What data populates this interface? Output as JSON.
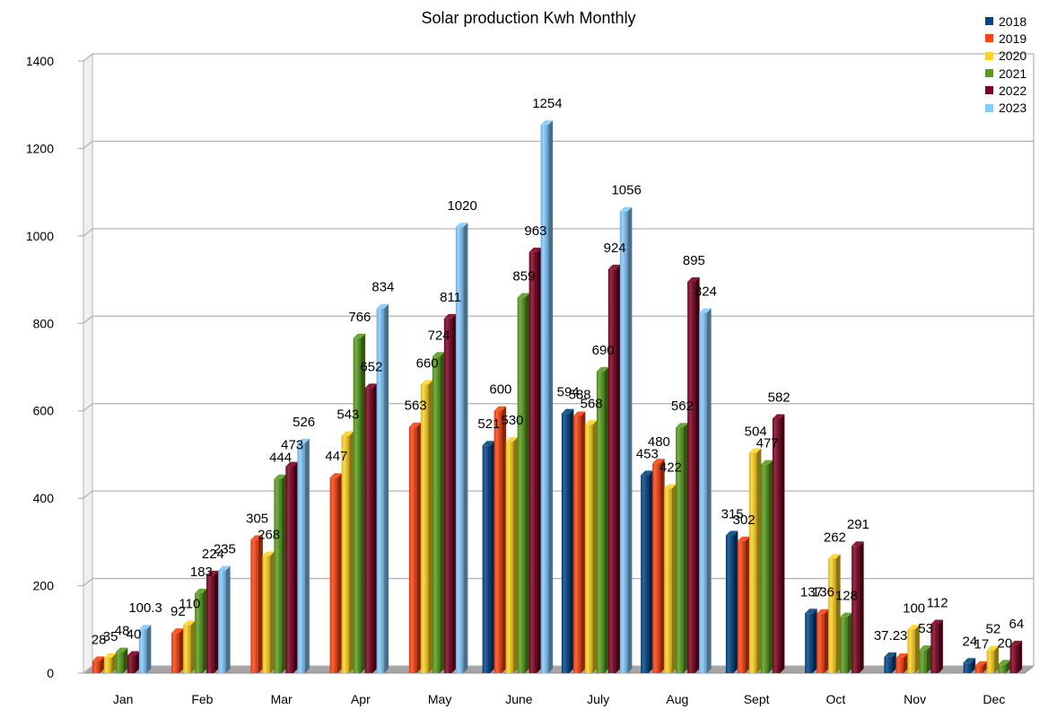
{
  "chart_data": {
    "type": "bar",
    "title": "Solar production Kwh Monthly",
    "xlabel": "",
    "ylabel": "",
    "ylim": [
      0,
      1400
    ],
    "yticks": [
      0,
      200,
      400,
      600,
      800,
      1000,
      1200,
      1400
    ],
    "grid": true,
    "legend_position": "top-right",
    "categories": [
      "Jan",
      "Feb",
      "Mar",
      "Apr",
      "May",
      "June",
      "July",
      "Aug",
      "Sept",
      "Oct",
      "Nov",
      "Dec"
    ],
    "series": [
      {
        "name": "2018",
        "color": "#004586",
        "values": [
          null,
          null,
          null,
          null,
          null,
          521,
          594,
          453,
          315,
          137,
          37.23,
          24
        ],
        "labels": [
          "",
          "",
          "",
          "",
          "",
          "521",
          "594",
          "453",
          "315",
          "137",
          "37.23",
          "24"
        ]
      },
      {
        "name": "2019",
        "color": "#ff420e",
        "values": [
          28,
          92,
          305,
          447,
          563,
          600,
          588,
          480,
          302,
          136,
          35,
          17
        ],
        "labels": [
          "28",
          "92",
          "305",
          "447",
          "563",
          "600",
          "588",
          "480",
          "302",
          "136",
          "",
          "17"
        ]
      },
      {
        "name": "2020",
        "color": "#ffd320",
        "values": [
          35,
          110,
          268,
          543,
          660,
          530,
          568,
          422,
          504,
          262,
          100,
          52
        ],
        "labels": [
          "35",
          "110",
          "268",
          "543",
          "660",
          "530",
          "568",
          "422",
          "504",
          "262",
          "100",
          "52"
        ]
      },
      {
        "name": "2021",
        "color": "#579d1c",
        "values": [
          48,
          183,
          444,
          766,
          724,
          859,
          690,
          562,
          477,
          128,
          53,
          20
        ],
        "labels": [
          "48",
          "183",
          "444",
          "766",
          "724",
          "859",
          "690",
          "562",
          "477",
          "128",
          "53",
          "20"
        ]
      },
      {
        "name": "2022",
        "color": "#7e0021",
        "values": [
          40,
          224,
          473,
          652,
          811,
          963,
          924,
          895,
          582,
          291,
          112,
          64
        ],
        "labels": [
          "40",
          "224",
          "473",
          "652",
          "811",
          "963",
          "924",
          "895",
          "582",
          "291",
          "112",
          "64"
        ]
      },
      {
        "name": "2023",
        "color": "#83caff",
        "values": [
          100.3,
          235,
          526,
          834,
          1020,
          1254,
          1056,
          824,
          null,
          null,
          null,
          null
        ],
        "labels": [
          "100.3",
          "235",
          "526",
          "834",
          "1020",
          "1254",
          "1056",
          "824",
          "",
          "",
          "",
          ""
        ]
      }
    ]
  }
}
